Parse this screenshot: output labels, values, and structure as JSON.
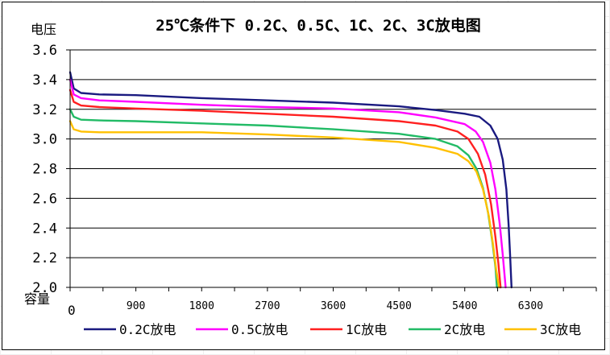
{
  "chart_data": {
    "type": "line",
    "title": "25℃条件下 0.2C、0.5C、1C、2C、3C放电图",
    "ylabel": "电压",
    "xlabel": "容量",
    "ylim": [
      2.0,
      3.6
    ],
    "xlim": [
      0,
      7200
    ],
    "grid": "horizontal",
    "legend_position": "bottom",
    "yticks": [
      "2.0",
      "2.2",
      "2.4",
      "2.6",
      "2.8",
      "3.0",
      "3.2",
      "3.4",
      "3.6"
    ],
    "ytick_values": [
      2.0,
      2.2,
      2.4,
      2.6,
      2.8,
      3.0,
      3.2,
      3.4,
      3.6
    ],
    "xticks": [
      "0",
      "900",
      "1800",
      "2700",
      "3600",
      "4500",
      "5400",
      "6300"
    ],
    "xtick_values": [
      0,
      900,
      1800,
      2700,
      3600,
      4500,
      5400,
      6300
    ],
    "series": [
      {
        "name": "0.2C放电",
        "color": "#1a1a80",
        "points": [
          [
            0,
            3.45
          ],
          [
            50,
            3.34
          ],
          [
            150,
            3.31
          ],
          [
            400,
            3.3
          ],
          [
            900,
            3.295
          ],
          [
            1800,
            3.275
          ],
          [
            2700,
            3.26
          ],
          [
            3600,
            3.245
          ],
          [
            4500,
            3.22
          ],
          [
            5000,
            3.195
          ],
          [
            5400,
            3.17
          ],
          [
            5600,
            3.15
          ],
          [
            5750,
            3.09
          ],
          [
            5850,
            3.0
          ],
          [
            5920,
            2.86
          ],
          [
            5970,
            2.66
          ],
          [
            6000,
            2.42
          ],
          [
            6020,
            2.22
          ],
          [
            6040,
            2.0
          ]
        ]
      },
      {
        "name": "0.5C放电",
        "color": "#ff00ff",
        "points": [
          [
            0,
            3.4
          ],
          [
            50,
            3.3
          ],
          [
            150,
            3.275
          ],
          [
            400,
            3.26
          ],
          [
            900,
            3.25
          ],
          [
            1800,
            3.23
          ],
          [
            2700,
            3.215
          ],
          [
            3600,
            3.205
          ],
          [
            4500,
            3.18
          ],
          [
            5000,
            3.145
          ],
          [
            5400,
            3.1
          ],
          [
            5550,
            3.05
          ],
          [
            5650,
            2.98
          ],
          [
            5750,
            2.84
          ],
          [
            5820,
            2.66
          ],
          [
            5880,
            2.42
          ],
          [
            5920,
            2.22
          ],
          [
            5960,
            2.0
          ]
        ]
      },
      {
        "name": "1C放电",
        "color": "#ff2020",
        "points": [
          [
            0,
            3.33
          ],
          [
            50,
            3.25
          ],
          [
            150,
            3.225
          ],
          [
            400,
            3.215
          ],
          [
            900,
            3.205
          ],
          [
            1800,
            3.19
          ],
          [
            2700,
            3.17
          ],
          [
            3600,
            3.15
          ],
          [
            4500,
            3.12
          ],
          [
            5000,
            3.09
          ],
          [
            5300,
            3.05
          ],
          [
            5450,
            3.0
          ],
          [
            5580,
            2.9
          ],
          [
            5680,
            2.76
          ],
          [
            5760,
            2.56
          ],
          [
            5820,
            2.34
          ],
          [
            5860,
            2.16
          ],
          [
            5890,
            2.0
          ]
        ]
      },
      {
        "name": "2C放电",
        "color": "#22bb66",
        "points": [
          [
            0,
            3.2
          ],
          [
            50,
            3.15
          ],
          [
            150,
            3.13
          ],
          [
            400,
            3.125
          ],
          [
            900,
            3.12
          ],
          [
            1800,
            3.105
          ],
          [
            2700,
            3.09
          ],
          [
            3600,
            3.065
          ],
          [
            4500,
            3.035
          ],
          [
            5000,
            3.0
          ],
          [
            5300,
            2.95
          ],
          [
            5450,
            2.89
          ],
          [
            5560,
            2.8
          ],
          [
            5650,
            2.67
          ],
          [
            5720,
            2.5
          ],
          [
            5780,
            2.3
          ],
          [
            5820,
            2.14
          ],
          [
            5840,
            2.0
          ]
        ]
      },
      {
        "name": "3C放电",
        "color": "#ffc000",
        "points": [
          [
            0,
            3.12
          ],
          [
            50,
            3.065
          ],
          [
            150,
            3.05
          ],
          [
            400,
            3.045
          ],
          [
            900,
            3.045
          ],
          [
            1800,
            3.045
          ],
          [
            2700,
            3.03
          ],
          [
            3600,
            3.01
          ],
          [
            4500,
            2.98
          ],
          [
            5000,
            2.94
          ],
          [
            5300,
            2.9
          ],
          [
            5450,
            2.85
          ],
          [
            5560,
            2.78
          ],
          [
            5650,
            2.66
          ],
          [
            5730,
            2.48
          ],
          [
            5790,
            2.28
          ],
          [
            5830,
            2.12
          ],
          [
            5870,
            2.0
          ]
        ]
      }
    ]
  }
}
